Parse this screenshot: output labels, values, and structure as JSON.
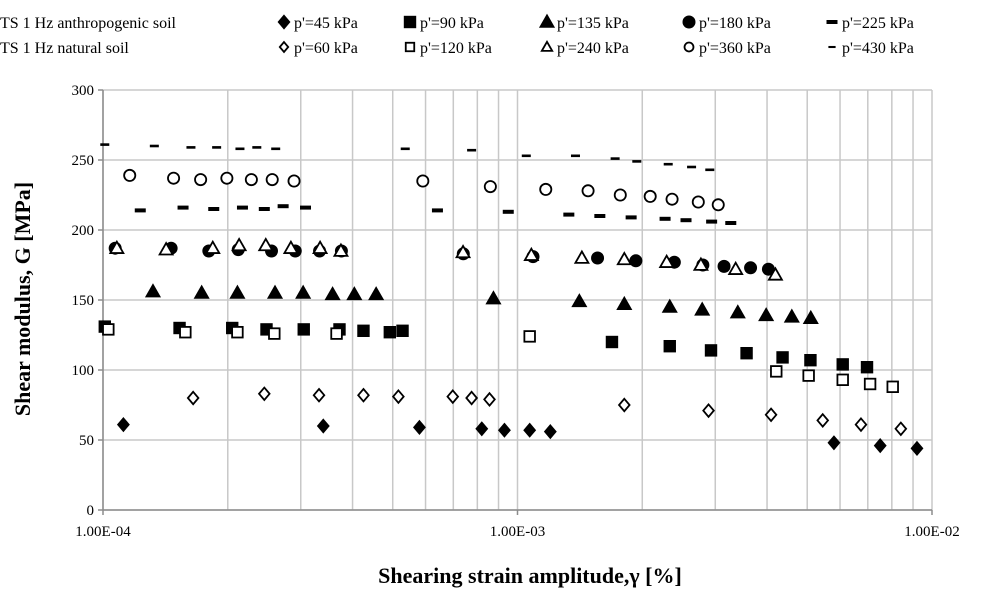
{
  "chart_data": {
    "type": "scatter",
    "xlabel": "Shearing strain amplitude,γ [%]",
    "ylabel": "Shear modulus, G [MPa]",
    "xscale": "log",
    "xlim": [
      0.0001,
      0.01
    ],
    "ylim": [
      0,
      300
    ],
    "x_ticks": [
      {
        "value": 0.0001,
        "label": "1.00E-04"
      },
      {
        "value": 0.001,
        "label": "1.00E-03"
      },
      {
        "value": 0.01,
        "label": "1.00E-02"
      }
    ],
    "y_ticks": [
      0,
      50,
      100,
      150,
      200,
      250,
      300
    ],
    "grid": true,
    "legend_position": "top",
    "legend_groups": [
      "TS 1 Hz anthropogenic soil",
      "TS 1 Hz natural soil"
    ],
    "series": [
      {
        "group": "TS 1 Hz anthropogenic soil",
        "name": "p'=45 kPa",
        "marker": "diamond",
        "filled": true,
        "x": [
          0.000112,
          0.00034,
          0.00058,
          0.00082,
          0.00093,
          0.00107,
          0.0012,
          0.0058,
          0.0075,
          0.0092
        ],
        "y": [
          61,
          60,
          59,
          58,
          57,
          57,
          56,
          48,
          46,
          44
        ]
      },
      {
        "group": "TS 1 Hz anthropogenic soil",
        "name": "p'=90 kPa",
        "marker": "square",
        "filled": true,
        "x": [
          0.000101,
          0.000153,
          0.000205,
          0.000248,
          0.000305,
          0.000372,
          0.000425,
          0.000492,
          0.000528,
          0.00169,
          0.00233,
          0.00293,
          0.00357,
          0.00436,
          0.00509,
          0.00609,
          0.00697
        ],
        "y": [
          131,
          130,
          130,
          129,
          129,
          129,
          128,
          127,
          128,
          120,
          117,
          114,
          112,
          109,
          107,
          104,
          102
        ]
      },
      {
        "group": "TS 1 Hz anthropogenic soil",
        "name": "p'=135 kPa",
        "marker": "triangle",
        "filled": true,
        "x": [
          0.000132,
          0.000173,
          0.000211,
          0.00026,
          0.000304,
          0.000358,
          0.000404,
          0.000456,
          0.000875,
          0.00141,
          0.00181,
          0.00233,
          0.00279,
          0.0034,
          0.00398,
          0.00459,
          0.0051
        ],
        "y": [
          156,
          155,
          155,
          155,
          155,
          154,
          154,
          154,
          151,
          149,
          147,
          145,
          143,
          141,
          139,
          138,
          137
        ]
      },
      {
        "group": "TS 1 Hz anthropogenic soil",
        "name": "p'=180 kPa",
        "marker": "circle",
        "filled": true,
        "x": [
          0.000107,
          0.000146,
          0.00018,
          0.000212,
          0.000255,
          0.000291,
          0.000333,
          0.000376,
          0.00074,
          0.00109,
          0.00156,
          0.00193,
          0.00239,
          0.0028,
          0.00315,
          0.00365,
          0.00403
        ],
        "y": [
          187,
          187,
          185,
          186,
          185,
          185,
          185,
          185,
          183,
          181,
          180,
          178,
          177,
          175,
          174,
          173,
          172
        ]
      },
      {
        "group": "TS 1 Hz anthropogenic soil",
        "name": "p'=225 kPa",
        "marker": "dash",
        "filled": true,
        "x": [
          0.000123,
          0.000156,
          0.000185,
          0.000217,
          0.000245,
          0.000272,
          0.000308,
          0.000641,
          0.00095,
          0.00133,
          0.00158,
          0.00188,
          0.00227,
          0.00255,
          0.00294,
          0.00327
        ],
        "y": [
          214,
          216,
          215,
          216,
          215,
          217,
          216,
          214,
          213,
          211,
          210,
          209,
          208,
          207,
          206,
          205
        ]
      },
      {
        "group": "TS 1 Hz natural soil",
        "name": "p'=60 kPa",
        "marker": "diamond",
        "filled": false,
        "x": [
          0.000165,
          0.000245,
          0.000332,
          0.000425,
          0.000516,
          0.000698,
          0.000775,
          0.000856,
          0.00181,
          0.00289,
          0.00409,
          0.00545,
          0.00674,
          0.00841
        ],
        "y": [
          80,
          83,
          82,
          82,
          81,
          81,
          80,
          79,
          75,
          71,
          68,
          64,
          61,
          58
        ]
      },
      {
        "group": "TS 1 Hz natural soil",
        "name": "p'=120 kPa",
        "marker": "square",
        "filled": false,
        "x": [
          0.000103,
          0.000158,
          0.000211,
          0.000259,
          0.000366,
          0.00107,
          0.00421,
          0.00504,
          0.00609,
          0.00709,
          0.00804
        ],
        "y": [
          129,
          127,
          127,
          126,
          126,
          124,
          99,
          96,
          93,
          90,
          88
        ]
      },
      {
        "group": "TS 1 Hz natural soil",
        "name": "p'=240 kPa",
        "marker": "triangle",
        "filled": false,
        "x": [
          0.000108,
          0.000142,
          0.000184,
          0.000213,
          0.000247,
          0.000284,
          0.000334,
          0.000375,
          0.000739,
          0.00108,
          0.00143,
          0.00181,
          0.00229,
          0.00277,
          0.00336,
          0.00419
        ],
        "y": [
          187,
          186,
          187,
          189,
          189,
          187,
          187,
          185,
          184,
          182,
          180,
          179,
          177,
          175,
          172,
          168
        ]
      },
      {
        "group": "TS 1 Hz natural soil",
        "name": "p'=360 kPa",
        "marker": "circle",
        "filled": false,
        "x": [
          0.000116,
          0.000148,
          0.000172,
          0.000199,
          0.000228,
          0.000256,
          0.000289,
          0.000591,
          0.00086,
          0.00117,
          0.00148,
          0.00177,
          0.00209,
          0.00236,
          0.00273,
          0.00305
        ],
        "y": [
          239,
          237,
          236,
          237,
          236,
          236,
          235,
          235,
          231,
          229,
          228,
          225,
          224,
          222,
          220,
          218
        ]
      },
      {
        "group": "TS 1 Hz natural soil",
        "name": "p'=430 kPa",
        "marker": "dash",
        "filled": false,
        "x": [
          0.000101,
          0.000133,
          0.000163,
          0.000188,
          0.000214,
          0.000235,
          0.000261,
          0.000536,
          0.000775,
          0.00105,
          0.00138,
          0.00172,
          0.00194,
          0.00231,
          0.00263,
          0.00291
        ],
        "y": [
          261,
          260,
          259,
          259,
          258,
          259,
          258,
          258,
          257,
          253,
          253,
          251,
          249,
          247,
          245,
          243
        ]
      }
    ]
  }
}
